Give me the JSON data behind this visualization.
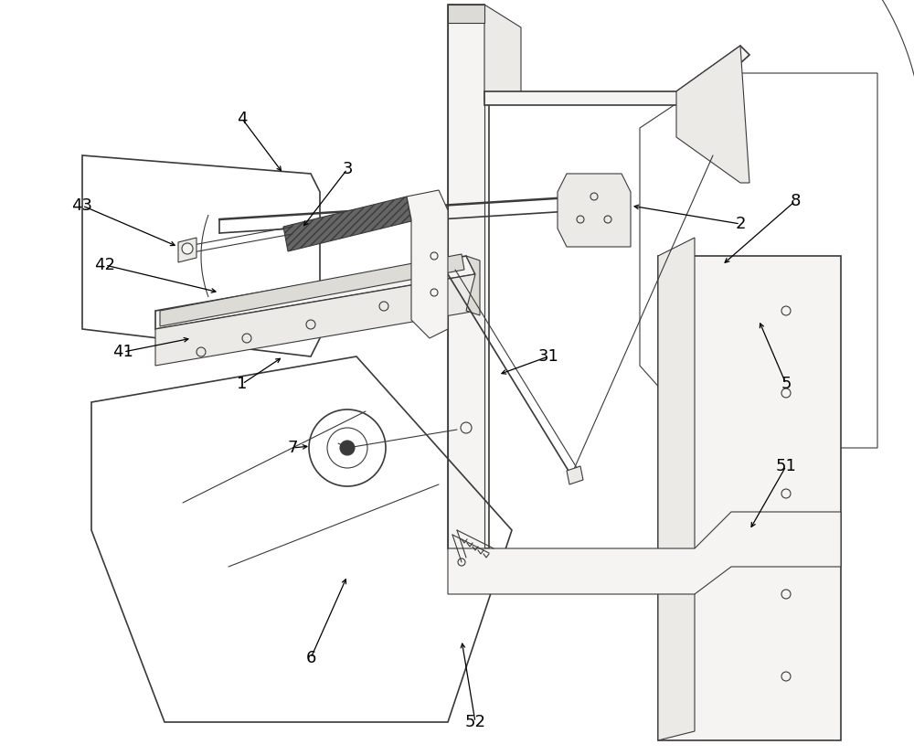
{
  "background_color": "#ffffff",
  "figure_width": 10.0,
  "figure_height": 8.26,
  "dpi": 100,
  "line_color": "#3a3a3a",
  "label_fontsize": 13,
  "label_color": "#000000",
  "fill_light": "#f5f4f2",
  "fill_mid": "#eceae6",
  "fill_dark": "#dddbd6"
}
